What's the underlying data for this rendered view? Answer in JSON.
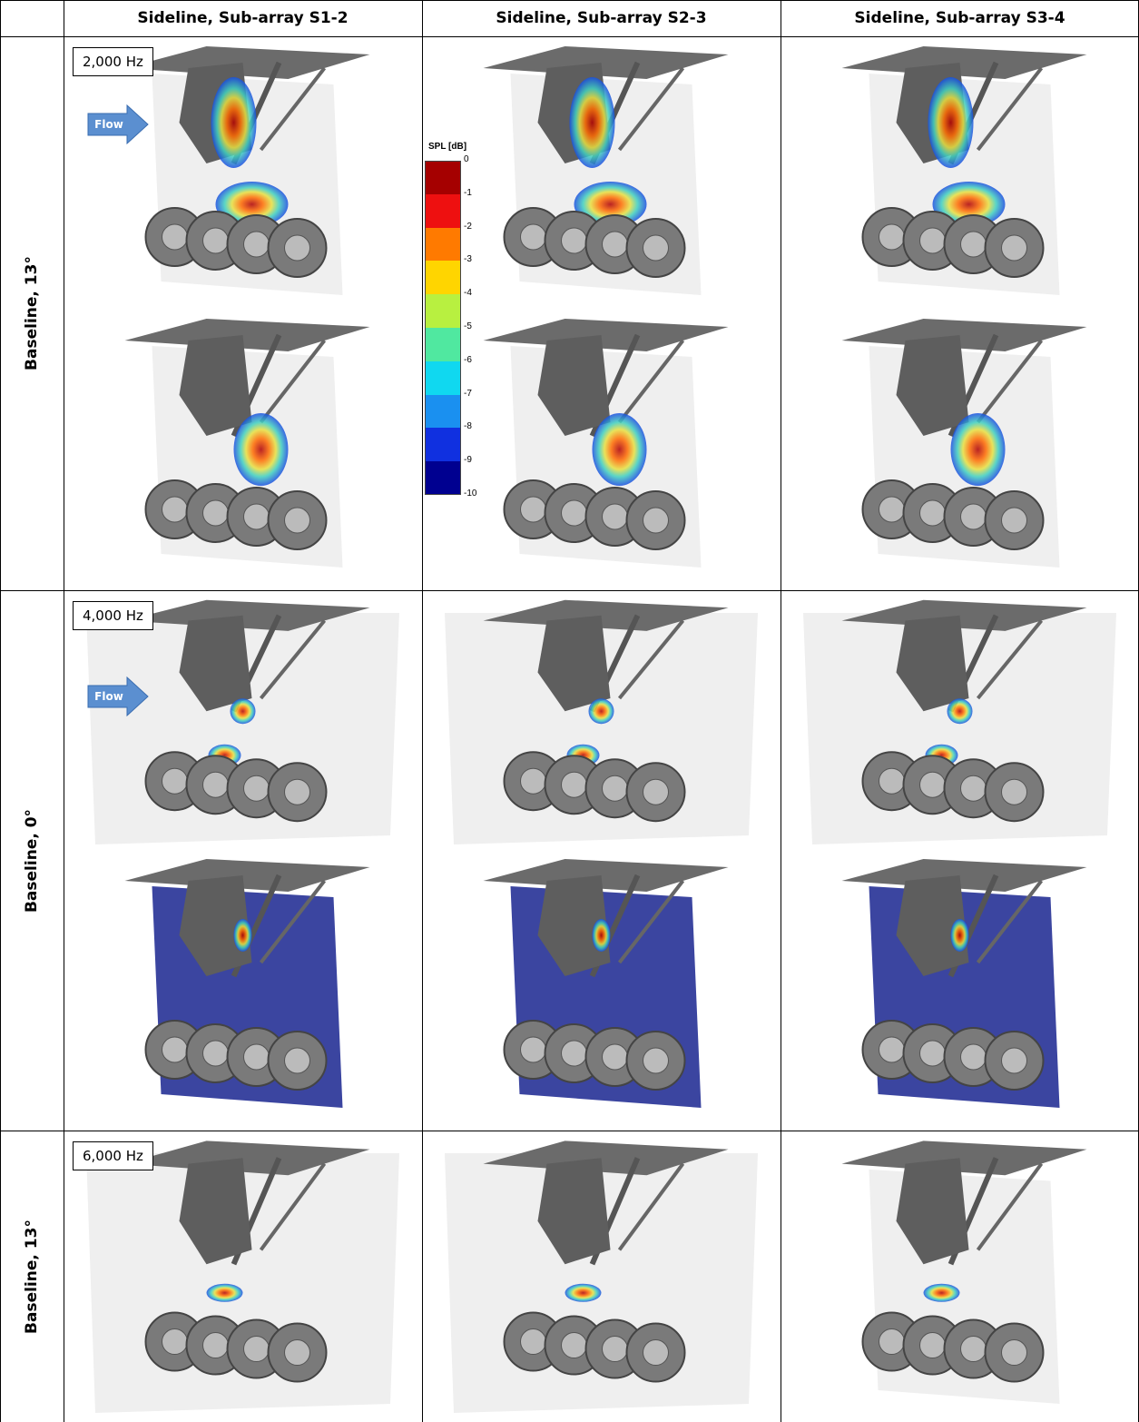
{
  "table": {
    "columns": [
      "Sideline, Sub-array S1-2",
      "Sideline, Sub-array S2-3",
      "Sideline, Sub-array S3-4"
    ],
    "rows": [
      {
        "label": "Baseline, 13°",
        "frequency": "2,000 Hz",
        "flow": "Flow"
      },
      {
        "label": "Baseline, 0°",
        "frequency": "4,000 Hz",
        "flow": "Flow"
      },
      {
        "label": "Baseline, 13°",
        "frequency": "6,000 Hz"
      }
    ]
  },
  "colorbar": {
    "title": "SPL [dB]",
    "ticks": [
      0,
      -1,
      -2,
      -3,
      -4,
      -5,
      -6,
      -7,
      -8,
      -9,
      -10
    ],
    "colors": [
      "#a50000",
      "#ee1010",
      "#ff7a00",
      "#ffd500",
      "#b8f040",
      "#50e8a0",
      "#10d8f0",
      "#1a90f0",
      "#1030e0",
      "#000090"
    ]
  }
}
